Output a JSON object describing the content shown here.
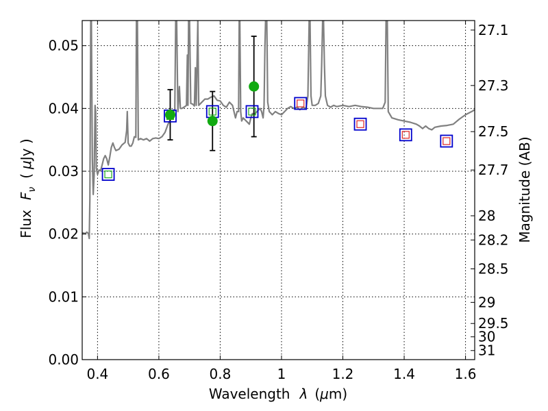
{
  "chart_data": {
    "type": "line",
    "xlabel": "Wavelength",
    "xlabel_symbol": "λ",
    "xlabel_unit_open": "(",
    "xlabel_unit_mu": "μ",
    "xlabel_unit_rest": "m)",
    "ylabel": "Flux",
    "ylabel_symbol": "F",
    "ylabel_sub": "ν",
    "ylabel_unit_open": "(",
    "ylabel_unit_mu": "μ",
    "ylabel_unit_rest": "Jy )",
    "y2label": "Magnitude (AB)",
    "xlim": [
      0.35,
      1.63
    ],
    "ylim": [
      0.0,
      0.054
    ],
    "grid": true,
    "x_ticks": [
      {
        "v": 0.4,
        "label": "0.4"
      },
      {
        "v": 0.6,
        "label": "0.6"
      },
      {
        "v": 0.8,
        "label": "0.8"
      },
      {
        "v": 1.0,
        "label": "1"
      },
      {
        "v": 1.2,
        "label": "1.2"
      },
      {
        "v": 1.4,
        "label": "1.4"
      },
      {
        "v": 1.6,
        "label": "1.6"
      }
    ],
    "y_ticks": [
      {
        "v": 0.0,
        "label": "0.00"
      },
      {
        "v": 0.01,
        "label": "0.01"
      },
      {
        "v": 0.02,
        "label": "0.02"
      },
      {
        "v": 0.03,
        "label": "0.03"
      },
      {
        "v": 0.04,
        "label": "0.04"
      },
      {
        "v": 0.05,
        "label": "0.05"
      }
    ],
    "mag_ticks": [
      {
        "mag": 27.1,
        "label": "27.1"
      },
      {
        "mag": 27.3,
        "label": "27.3"
      },
      {
        "mag": 27.5,
        "label": "27.5"
      },
      {
        "mag": 27.7,
        "label": "27.7"
      },
      {
        "mag": 28.0,
        "label": "28"
      },
      {
        "mag": 28.2,
        "label": "28.2"
      },
      {
        "mag": 28.5,
        "label": "28.5"
      },
      {
        "mag": 29.0,
        "label": "29"
      },
      {
        "mag": 29.5,
        "label": "29.5"
      },
      {
        "mag": 30.0,
        "label": "30"
      },
      {
        "mag": 31.0,
        "label": "31"
      }
    ],
    "colors": {
      "spectrum": "#808080",
      "model_blue": "#0000cc",
      "model_red": "#dd2222",
      "model_green": "#1aaa1a",
      "observed": "#11aa11",
      "errorbar": "#000000"
    },
    "series": [
      {
        "kind": "spectrum",
        "points": [
          [
            0.35,
            0.0202
          ],
          [
            0.36,
            0.0201
          ],
          [
            0.365,
            0.0203
          ],
          [
            0.37,
            0.0201
          ],
          [
            0.373,
            0.0193
          ],
          [
            0.375,
            0.0255
          ],
          [
            0.378,
            0.054
          ],
          [
            0.38,
            0.054
          ],
          [
            0.383,
            0.032
          ],
          [
            0.386,
            0.0263
          ],
          [
            0.389,
            0.0295
          ],
          [
            0.392,
            0.0405
          ],
          [
            0.394,
            0.0395
          ],
          [
            0.396,
            0.0305
          ],
          [
            0.4,
            0.0295
          ],
          [
            0.405,
            0.0302
          ],
          [
            0.41,
            0.0301
          ],
          [
            0.415,
            0.031
          ],
          [
            0.42,
            0.032
          ],
          [
            0.425,
            0.0325
          ],
          [
            0.43,
            0.032
          ],
          [
            0.435,
            0.031
          ],
          [
            0.44,
            0.0323
          ],
          [
            0.445,
            0.0338
          ],
          [
            0.45,
            0.0345
          ],
          [
            0.455,
            0.0338
          ],
          [
            0.46,
            0.0333
          ],
          [
            0.47,
            0.0335
          ],
          [
            0.48,
            0.0342
          ],
          [
            0.49,
            0.0346
          ],
          [
            0.495,
            0.0365
          ],
          [
            0.497,
            0.0395
          ],
          [
            0.5,
            0.0345
          ],
          [
            0.505,
            0.034
          ],
          [
            0.51,
            0.034
          ],
          [
            0.515,
            0.0345
          ],
          [
            0.52,
            0.0355
          ],
          [
            0.525,
            0.0354
          ],
          [
            0.527,
            0.054
          ],
          [
            0.53,
            0.054
          ],
          [
            0.533,
            0.035
          ],
          [
            0.54,
            0.0352
          ],
          [
            0.55,
            0.035
          ],
          [
            0.56,
            0.0352
          ],
          [
            0.57,
            0.0348
          ],
          [
            0.58,
            0.0352
          ],
          [
            0.59,
            0.0353
          ],
          [
            0.6,
            0.0352
          ],
          [
            0.61,
            0.0355
          ],
          [
            0.62,
            0.0362
          ],
          [
            0.63,
            0.0375
          ],
          [
            0.635,
            0.038
          ],
          [
            0.64,
            0.0385
          ],
          [
            0.643,
            0.0385
          ],
          [
            0.647,
            0.0392
          ],
          [
            0.652,
            0.04
          ],
          [
            0.655,
            0.054
          ],
          [
            0.658,
            0.054
          ],
          [
            0.662,
            0.0395
          ],
          [
            0.667,
            0.0435
          ],
          [
            0.67,
            0.04
          ],
          [
            0.675,
            0.04
          ],
          [
            0.685,
            0.0403
          ],
          [
            0.69,
            0.0405
          ],
          [
            0.693,
            0.0485
          ],
          [
            0.695,
            0.0405
          ],
          [
            0.697,
            0.054
          ],
          [
            0.7,
            0.054
          ],
          [
            0.704,
            0.0408
          ],
          [
            0.71,
            0.0407
          ],
          [
            0.716,
            0.0404
          ],
          [
            0.719,
            0.0465
          ],
          [
            0.722,
            0.0405
          ],
          [
            0.727,
            0.054
          ],
          [
            0.73,
            0.0405
          ],
          [
            0.74,
            0.041
          ],
          [
            0.75,
            0.0415
          ],
          [
            0.76,
            0.0415
          ],
          [
            0.77,
            0.0418
          ],
          [
            0.78,
            0.042
          ],
          [
            0.79,
            0.0413
          ],
          [
            0.8,
            0.0412
          ],
          [
            0.81,
            0.0405
          ],
          [
            0.82,
            0.0402
          ],
          [
            0.83,
            0.041
          ],
          [
            0.84,
            0.0405
          ],
          [
            0.85,
            0.0385
          ],
          [
            0.855,
            0.0395
          ],
          [
            0.86,
            0.0395
          ],
          [
            0.862,
            0.054
          ],
          [
            0.864,
            0.054
          ],
          [
            0.867,
            0.0395
          ],
          [
            0.87,
            0.038
          ],
          [
            0.875,
            0.0385
          ],
          [
            0.885,
            0.038
          ],
          [
            0.895,
            0.0375
          ],
          [
            0.9,
            0.0385
          ],
          [
            0.905,
            0.0392
          ],
          [
            0.91,
            0.039
          ],
          [
            0.92,
            0.0395
          ],
          [
            0.93,
            0.04
          ],
          [
            0.935,
            0.0395
          ],
          [
            0.94,
            0.0385
          ],
          [
            0.943,
            0.0405
          ],
          [
            0.946,
            0.05
          ],
          [
            0.948,
            0.054
          ],
          [
            0.952,
            0.054
          ],
          [
            0.955,
            0.041
          ],
          [
            0.96,
            0.0395
          ],
          [
            0.97,
            0.039
          ],
          [
            0.98,
            0.0395
          ],
          [
            0.99,
            0.0392
          ],
          [
            1.0,
            0.039
          ],
          [
            1.01,
            0.0395
          ],
          [
            1.02,
            0.04
          ],
          [
            1.03,
            0.0403
          ],
          [
            1.04,
            0.04
          ],
          [
            1.05,
            0.0402
          ],
          [
            1.06,
            0.0398
          ],
          [
            1.07,
            0.0402
          ],
          [
            1.08,
            0.04
          ],
          [
            1.086,
            0.042
          ],
          [
            1.09,
            0.054
          ],
          [
            1.093,
            0.054
          ],
          [
            1.096,
            0.042
          ],
          [
            1.1,
            0.0405
          ],
          [
            1.11,
            0.0405
          ],
          [
            1.12,
            0.0408
          ],
          [
            1.128,
            0.042
          ],
          [
            1.131,
            0.047
          ],
          [
            1.134,
            0.054
          ],
          [
            1.137,
            0.054
          ],
          [
            1.14,
            0.047
          ],
          [
            1.143,
            0.042
          ],
          [
            1.15,
            0.0405
          ],
          [
            1.16,
            0.0402
          ],
          [
            1.17,
            0.0405
          ],
          [
            1.18,
            0.0403
          ],
          [
            1.2,
            0.0405
          ],
          [
            1.22,
            0.0403
          ],
          [
            1.24,
            0.0405
          ],
          [
            1.26,
            0.0403
          ],
          [
            1.28,
            0.0402
          ],
          [
            1.3,
            0.04
          ],
          [
            1.32,
            0.04
          ],
          [
            1.33,
            0.04
          ],
          [
            1.338,
            0.041
          ],
          [
            1.341,
            0.054
          ],
          [
            1.345,
            0.054
          ],
          [
            1.348,
            0.0395
          ],
          [
            1.36,
            0.0385
          ],
          [
            1.38,
            0.0382
          ],
          [
            1.4,
            0.038
          ],
          [
            1.42,
            0.0378
          ],
          [
            1.44,
            0.0375
          ],
          [
            1.45,
            0.0372
          ],
          [
            1.46,
            0.0368
          ],
          [
            1.47,
            0.0372
          ],
          [
            1.48,
            0.0368
          ],
          [
            1.49,
            0.0366
          ],
          [
            1.5,
            0.037
          ],
          [
            1.52,
            0.0372
          ],
          [
            1.54,
            0.0373
          ],
          [
            1.56,
            0.0375
          ],
          [
            1.58,
            0.0383
          ],
          [
            1.6,
            0.039
          ],
          [
            1.62,
            0.0395
          ],
          [
            1.63,
            0.0398
          ]
        ]
      },
      {
        "kind": "model_photometry",
        "points": [
          [
            0.435,
            0.0295
          ],
          [
            0.637,
            0.0388
          ],
          [
            0.775,
            0.0395
          ],
          [
            0.904,
            0.0395
          ],
          [
            1.062,
            0.0408
          ],
          [
            1.257,
            0.0375
          ],
          [
            1.405,
            0.0358
          ],
          [
            1.538,
            0.0348
          ]
        ]
      },
      {
        "kind": "observed_photometry",
        "points": [
          {
            "x": 0.637,
            "y": 0.039,
            "err": 0.004
          },
          {
            "x": 0.775,
            "y": 0.038,
            "err": 0.0047
          },
          {
            "x": 0.91,
            "y": 0.0435,
            "err": 0.008
          }
        ]
      }
    ]
  }
}
